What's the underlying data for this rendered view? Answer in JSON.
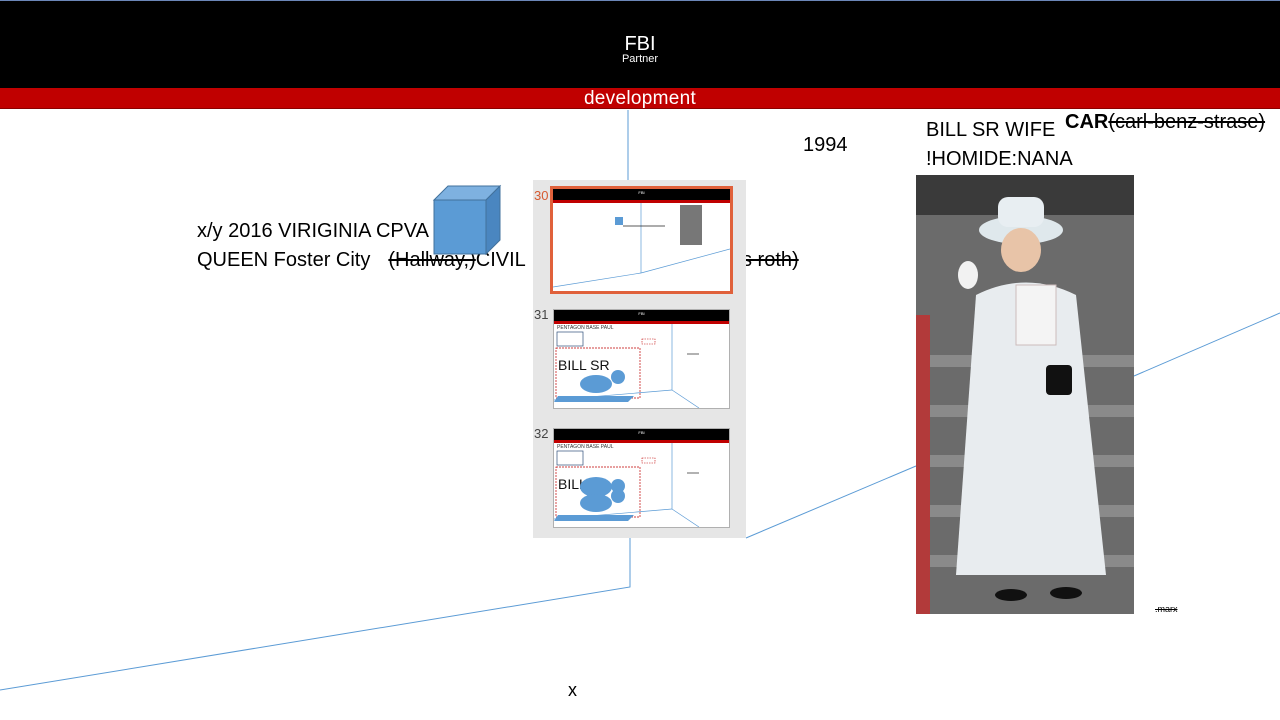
{
  "header": {
    "title": "FBI",
    "subtitle": "Partner"
  },
  "banner": {
    "label": "development"
  },
  "labels": {
    "year": "1994",
    "wife": "BILL SR WIFE",
    "homicide": "!HOMIDE:NANA",
    "car_bold": "CAR",
    "car_paren": "(carl-benz-strase)",
    "left_line1": "x/y 2016 VIRIGINIA CPVA  olci",
    "left_line2_a": "QUEEN Foster City",
    "left_line2_b": "(Hallway,)",
    "left_line2_c": "CIVIL",
    "strike_right": "s roth)",
    "x_mark": "x",
    "marx": ".marx"
  },
  "slides": {
    "items": [
      {
        "number": "30",
        "selected": true
      },
      {
        "number": "31",
        "selected": false,
        "heading": "PENTAGON BASE PAUL",
        "big_label": "BILL SR"
      },
      {
        "number": "32",
        "selected": false,
        "heading": "PENTAGON BASE PAUL",
        "big_label": "BILL"
      }
    ],
    "thumb_header": "FBI",
    "thumb_banner": "development"
  },
  "colors": {
    "header_bg": "#000000",
    "banner_bg": "#c00000",
    "line": "#5b9bd5",
    "shape_fill": "#5b9bd5",
    "selection": "#e0613b"
  },
  "icons": {
    "cube": "cube-shape",
    "photo": "woman-in-white-coat-photo"
  }
}
